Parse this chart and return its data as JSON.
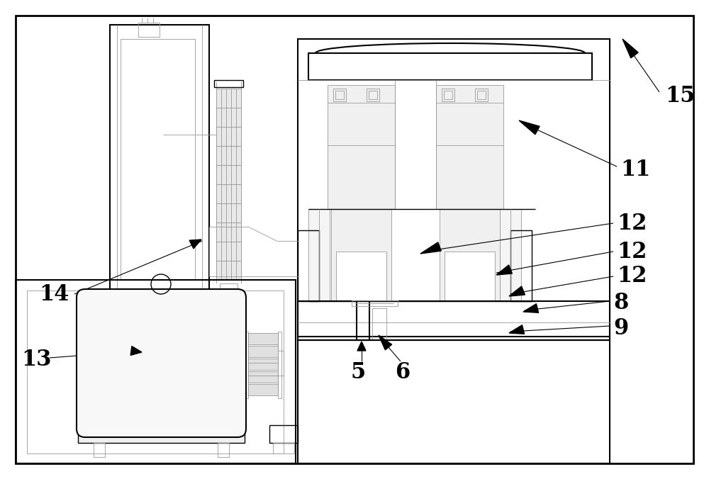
{
  "bg_color": "#ffffff",
  "lc": "#000000",
  "llc": "#999999",
  "lllc": "#bbbbbb",
  "fig_width": 10.0,
  "fig_height": 6.76
}
